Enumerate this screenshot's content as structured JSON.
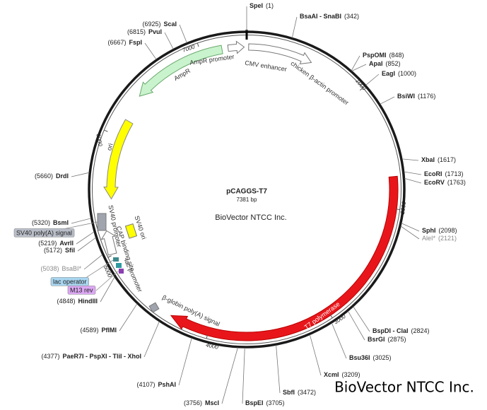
{
  "map": {
    "title": "pCAGGS-T7",
    "size": "7381 bp",
    "company": "BioVector NTCC Inc.",
    "watermark": "BioVector NTCC Inc.",
    "sites": [
      {
        "name": "SpeI",
        "position": "(1)"
      },
      {
        "name": "BsaAI - SnaBI",
        "position": "(342)"
      },
      {
        "name": "PspOMI",
        "position": "(848)"
      },
      {
        "name": "ApaI",
        "position": "(852)"
      },
      {
        "name": "EagI",
        "position": "(1000)"
      },
      {
        "name": "BsiWI",
        "position": "(1176)"
      },
      {
        "name": "XbaI",
        "position": "(1617)"
      },
      {
        "name": "EcoRI",
        "position": "(1713)"
      },
      {
        "name": "EcoRV",
        "position": "(1763)"
      },
      {
        "name": "SphI",
        "position": "(2098)"
      },
      {
        "name": "AleI*",
        "position": "(2121)"
      },
      {
        "name": "BspDI - ClaI",
        "position": "(2824)"
      },
      {
        "name": "BsrGI",
        "position": "(2875)"
      },
      {
        "name": "Bsu36I",
        "position": "(3025)"
      },
      {
        "name": "XcmI",
        "position": "(3209)"
      },
      {
        "name": "SbfI",
        "position": "(3472)"
      },
      {
        "name": "BspEI",
        "position": "(3705)"
      },
      {
        "name": "MscI",
        "position": "(3756)"
      },
      {
        "name": "PshAI",
        "position": "(4107)"
      },
      {
        "name": "PaeR7I - PspXI - TliI - XhoI",
        "position": "(4377)"
      },
      {
        "name": "PflMI",
        "position": "(4589)"
      },
      {
        "name": "HindIII",
        "position": "(4848)"
      },
      {
        "name": "BsaBI*",
        "position": "(5038)"
      },
      {
        "name": "SfiI",
        "position": "(5172)"
      },
      {
        "name": "AvrII",
        "position": "(5219)"
      },
      {
        "name": "BsmI",
        "position": "(5320)"
      },
      {
        "name": "DrdI",
        "position": "(5660)"
      },
      {
        "name": "FspI",
        "position": "(6667)"
      },
      {
        "name": "PvuI",
        "position": "(6815)"
      },
      {
        "name": "ScaI",
        "position": "(6925)"
      }
    ],
    "features": [
      "AmpR promoter",
      "CMV enhancer",
      "chicken β-actin promoter",
      "AmpR",
      "ori",
      "SV40 ori",
      "SV40 promoter",
      "CAP binding site",
      "lac promoter",
      "β-globin poly(A) signal",
      "T7 polymerase"
    ],
    "tagged_features": [
      "SV40 poly(A) signal",
      "lac operator",
      "M13 rev"
    ],
    "scale_ticks": [
      1000,
      2000,
      3000,
      4000,
      5000,
      6000,
      7000
    ]
  }
}
